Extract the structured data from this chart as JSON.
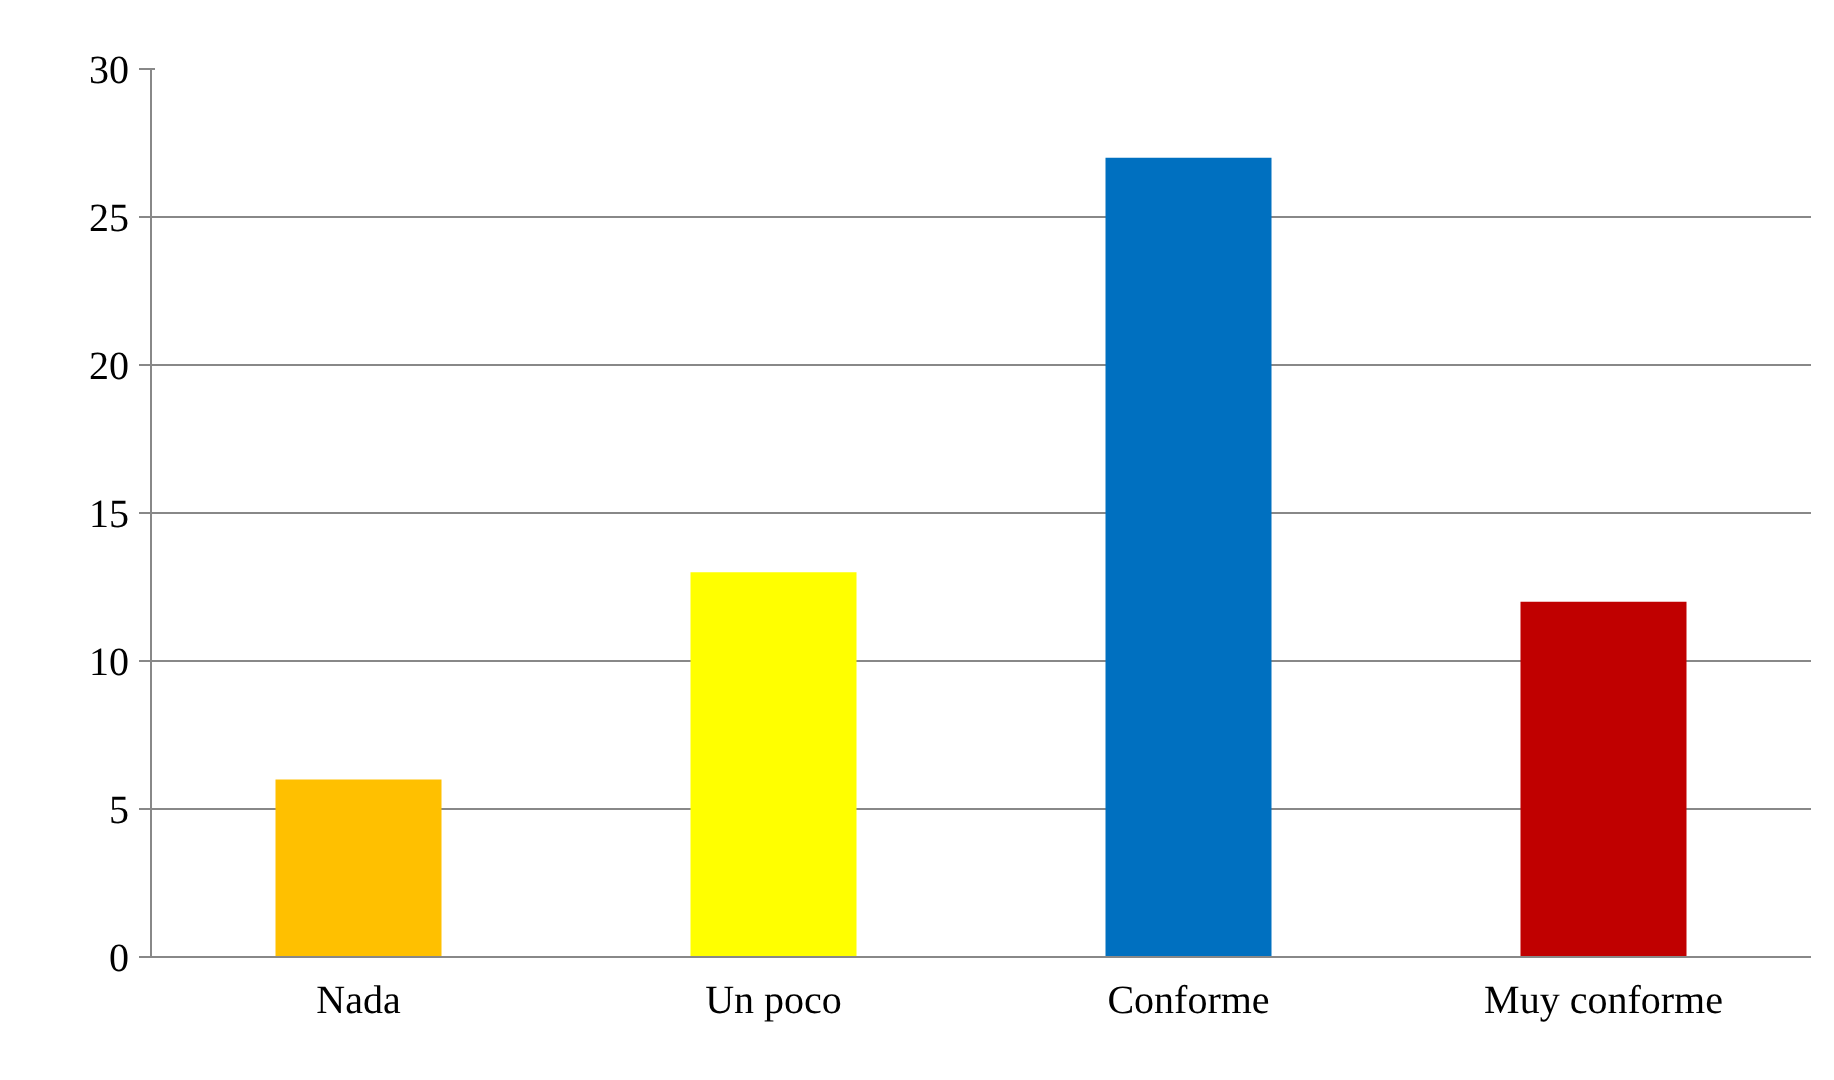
{
  "chart_data": {
    "type": "bar",
    "categories": [
      "Nada",
      "Un poco",
      "Conforme",
      "Muy conforme"
    ],
    "values": [
      6,
      13,
      27,
      12
    ],
    "colors": [
      "#ffc000",
      "#ffff00",
      "#0070c0",
      "#c00000"
    ],
    "ylim": [
      0,
      30
    ],
    "yticks": [
      0,
      5,
      10,
      15,
      20,
      25,
      30
    ],
    "grid": "y"
  }
}
